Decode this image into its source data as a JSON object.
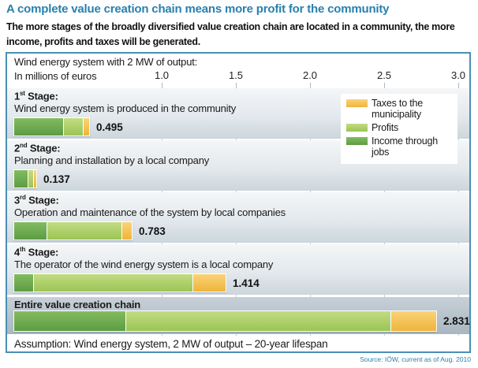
{
  "header": {
    "title": "A complete value creation chain means more profit for the community",
    "subtitle": "The more stages of the broadly diversified value creation chain are located in a community, the more income, profits and taxes will be generated."
  },
  "chart": {
    "top_label": "Wind energy system with 2 MW of output:",
    "axis_label": "In millions of euros",
    "assumption": "Assumption: Wind energy system, 2 MW of output – 20-year lifespan",
    "source": "Source: IÖW, current as of Aug. 2010"
  },
  "legend": [
    {
      "key": "taxes",
      "label": "Taxes to the municipality",
      "color": "#f2bd4e"
    },
    {
      "key": "profits",
      "label": "Profits",
      "color": "#aed06c"
    },
    {
      "key": "income",
      "label": "Income through jobs",
      "color": "#68a74b"
    }
  ],
  "colors": {
    "title_blue": "#2980ad",
    "frame_blue": "#4a8fb5",
    "income_green": "#68a74b",
    "profits_green": "#aed06c",
    "taxes_orange": "#f2bd4e",
    "source_blue": "#2e7fad"
  },
  "chart_data": {
    "type": "bar",
    "orientation": "horizontal",
    "stacked": true,
    "unit": "millions of euros",
    "xlim": [
      0,
      3.0
    ],
    "ticks": [
      1.0,
      1.5,
      2.0,
      2.5,
      3.0
    ],
    "grid": true,
    "legend_position": "top-right",
    "series_order": [
      "income",
      "profits",
      "taxes"
    ],
    "rows": [
      {
        "ordinal": "1",
        "ordinal_suffix": "st",
        "stage_word": "Stage:",
        "desc": "Wind energy system is produced in the community",
        "total": 0.495,
        "total_label": "0.495",
        "segments": {
          "income": 0.33,
          "profits": 0.13,
          "taxes": 0.035
        }
      },
      {
        "ordinal": "2",
        "ordinal_suffix": "nd",
        "stage_word": "Stage:",
        "desc": "Planning and installation by a local company",
        "total": 0.137,
        "total_label": "0.137",
        "segments": {
          "income": 0.09,
          "profits": 0.03,
          "taxes": 0.017
        }
      },
      {
        "ordinal": "3",
        "ordinal_suffix": "rd",
        "stage_word": "Stage:",
        "desc": "Operation and maintenance of the system by local companies",
        "total": 0.783,
        "total_label": "0.783",
        "segments": {
          "income": 0.22,
          "profits": 0.5,
          "taxes": 0.063
        }
      },
      {
        "ordinal": "4",
        "ordinal_suffix": "th",
        "stage_word": "Stage:",
        "desc": "The operator of the wind energy system is a local company",
        "total": 1.414,
        "total_label": "1.414",
        "segments": {
          "income": 0.125,
          "profits": 1.07,
          "taxes": 0.219
        }
      },
      {
        "title": "Entire value creation chain",
        "total": 2.831,
        "total_label": "2.831",
        "segments": {
          "income": 0.75,
          "profits": 1.78,
          "taxes": 0.301
        }
      }
    ]
  }
}
